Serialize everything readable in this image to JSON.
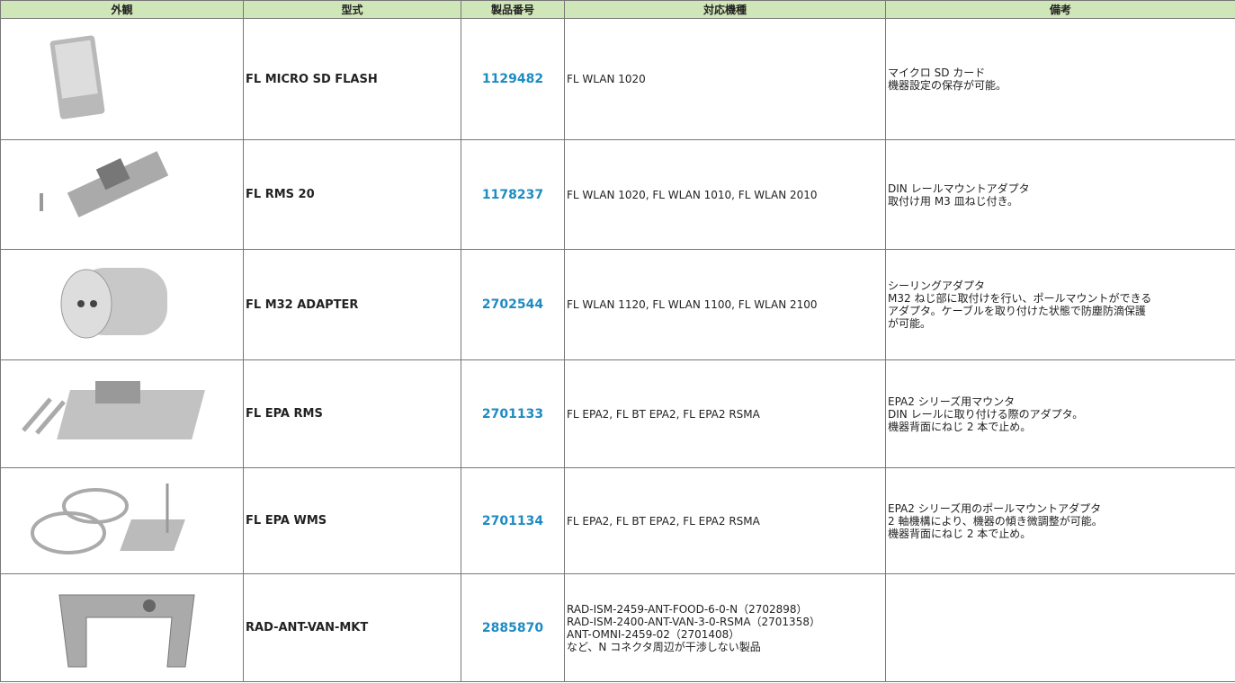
{
  "table": {
    "header": [
      "外観",
      "型式",
      "製品番号",
      "対応機種",
      "備考"
    ],
    "rows": [
      {
        "model": "FL MICRO SD FLASH",
        "number": "1129482",
        "compatible": [
          "FL WLAN 1020"
        ],
        "notes": [
          "マイクロ SD カード",
          "機器設定の保存が可能。"
        ]
      },
      {
        "model": "FL RMS 20",
        "number": "1178237",
        "compatible": [
          "FL WLAN 1020, FL WLAN 1010, FL WLAN 2010"
        ],
        "notes": [
          "DIN レールマウントアダプタ",
          "取付け用 M3 皿ねじ付き。"
        ]
      },
      {
        "model": "FL M32 ADAPTER",
        "number": "2702544",
        "compatible": [
          "FL WLAN 1120, FL WLAN 1100, FL WLAN 2100"
        ],
        "notes": [
          "シーリングアダプタ",
          "M32 ねじ部に取付けを行い、ポールマウントができる",
          "アダプタ。ケーブルを取り付けた状態で防塵防滴保護",
          "が可能。"
        ]
      },
      {
        "model": "FL EPA RMS",
        "number": "2701133",
        "compatible": [
          "FL EPA2, FL BT EPA2, FL EPA2 RSMA"
        ],
        "notes": [
          "EPA2 シリーズ用マウンタ",
          "DIN レールに取り付ける際のアダプタ。",
          "機器背面にねじ 2 本で止め。"
        ]
      },
      {
        "model": "FL EPA WMS",
        "number": "2701134",
        "compatible": [
          "FL EPA2, FL BT EPA2, FL EPA2 RSMA"
        ],
        "notes": [
          "EPA2 シリーズ用のポールマウントアダプタ",
          "2 軸機構により、機器の傾き微調整が可能。",
          "機器背面にねじ 2 本で止め。"
        ]
      },
      {
        "model": "RAD-ANT-VAN-MKT",
        "number": "2885870",
        "compatible": [
          "RAD-ISM-2459-ANT-FOOD-6-0-N（2702898）",
          "RAD-ISM-2400-ANT-VAN-3-0-RSMA（2701358）",
          "ANT-OMNI-2459-02（2701408）",
          "など、N コネクタ周辺が干渉しない製品"
        ]
      }
    ]
  }
}
